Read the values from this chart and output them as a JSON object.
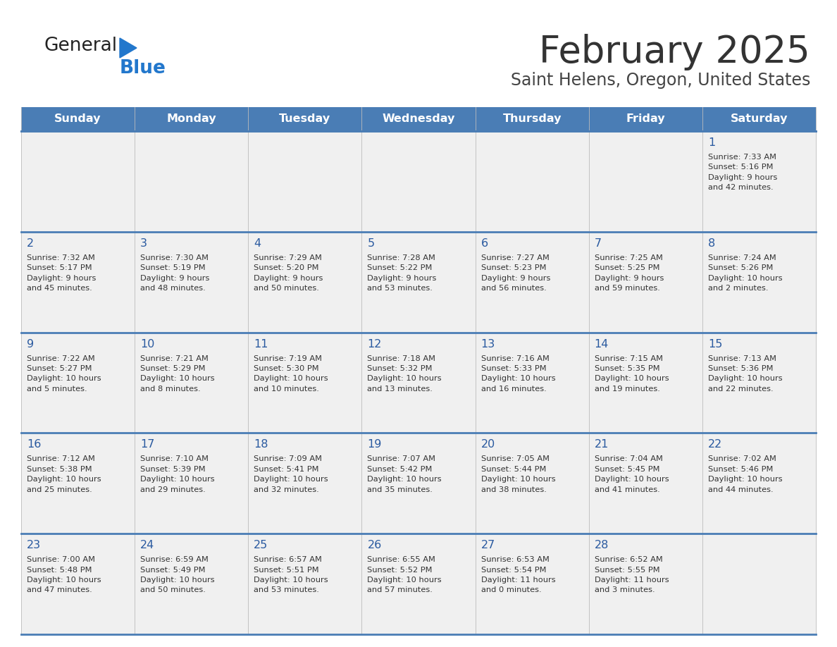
{
  "title": "February 2025",
  "subtitle": "Saint Helens, Oregon, United States",
  "header_color": "#4a7db5",
  "header_text_color": "#ffffff",
  "title_color": "#333333",
  "subtitle_color": "#444444",
  "cell_text_color": "#333333",
  "day_number_color": "#2a5aa0",
  "separator_color": "#4a7db5",
  "bg_color": "#f0f0f0",
  "white_color": "#ffffff",
  "days_of_week": [
    "Sunday",
    "Monday",
    "Tuesday",
    "Wednesday",
    "Thursday",
    "Friday",
    "Saturday"
  ],
  "calendar": [
    [
      {
        "day": "",
        "info": ""
      },
      {
        "day": "",
        "info": ""
      },
      {
        "day": "",
        "info": ""
      },
      {
        "day": "",
        "info": ""
      },
      {
        "day": "",
        "info": ""
      },
      {
        "day": "",
        "info": ""
      },
      {
        "day": "1",
        "info": "Sunrise: 7:33 AM\nSunset: 5:16 PM\nDaylight: 9 hours\nand 42 minutes."
      }
    ],
    [
      {
        "day": "2",
        "info": "Sunrise: 7:32 AM\nSunset: 5:17 PM\nDaylight: 9 hours\nand 45 minutes."
      },
      {
        "day": "3",
        "info": "Sunrise: 7:30 AM\nSunset: 5:19 PM\nDaylight: 9 hours\nand 48 minutes."
      },
      {
        "day": "4",
        "info": "Sunrise: 7:29 AM\nSunset: 5:20 PM\nDaylight: 9 hours\nand 50 minutes."
      },
      {
        "day": "5",
        "info": "Sunrise: 7:28 AM\nSunset: 5:22 PM\nDaylight: 9 hours\nand 53 minutes."
      },
      {
        "day": "6",
        "info": "Sunrise: 7:27 AM\nSunset: 5:23 PM\nDaylight: 9 hours\nand 56 minutes."
      },
      {
        "day": "7",
        "info": "Sunrise: 7:25 AM\nSunset: 5:25 PM\nDaylight: 9 hours\nand 59 minutes."
      },
      {
        "day": "8",
        "info": "Sunrise: 7:24 AM\nSunset: 5:26 PM\nDaylight: 10 hours\nand 2 minutes."
      }
    ],
    [
      {
        "day": "9",
        "info": "Sunrise: 7:22 AM\nSunset: 5:27 PM\nDaylight: 10 hours\nand 5 minutes."
      },
      {
        "day": "10",
        "info": "Sunrise: 7:21 AM\nSunset: 5:29 PM\nDaylight: 10 hours\nand 8 minutes."
      },
      {
        "day": "11",
        "info": "Sunrise: 7:19 AM\nSunset: 5:30 PM\nDaylight: 10 hours\nand 10 minutes."
      },
      {
        "day": "12",
        "info": "Sunrise: 7:18 AM\nSunset: 5:32 PM\nDaylight: 10 hours\nand 13 minutes."
      },
      {
        "day": "13",
        "info": "Sunrise: 7:16 AM\nSunset: 5:33 PM\nDaylight: 10 hours\nand 16 minutes."
      },
      {
        "day": "14",
        "info": "Sunrise: 7:15 AM\nSunset: 5:35 PM\nDaylight: 10 hours\nand 19 minutes."
      },
      {
        "day": "15",
        "info": "Sunrise: 7:13 AM\nSunset: 5:36 PM\nDaylight: 10 hours\nand 22 minutes."
      }
    ],
    [
      {
        "day": "16",
        "info": "Sunrise: 7:12 AM\nSunset: 5:38 PM\nDaylight: 10 hours\nand 25 minutes."
      },
      {
        "day": "17",
        "info": "Sunrise: 7:10 AM\nSunset: 5:39 PM\nDaylight: 10 hours\nand 29 minutes."
      },
      {
        "day": "18",
        "info": "Sunrise: 7:09 AM\nSunset: 5:41 PM\nDaylight: 10 hours\nand 32 minutes."
      },
      {
        "day": "19",
        "info": "Sunrise: 7:07 AM\nSunset: 5:42 PM\nDaylight: 10 hours\nand 35 minutes."
      },
      {
        "day": "20",
        "info": "Sunrise: 7:05 AM\nSunset: 5:44 PM\nDaylight: 10 hours\nand 38 minutes."
      },
      {
        "day": "21",
        "info": "Sunrise: 7:04 AM\nSunset: 5:45 PM\nDaylight: 10 hours\nand 41 minutes."
      },
      {
        "day": "22",
        "info": "Sunrise: 7:02 AM\nSunset: 5:46 PM\nDaylight: 10 hours\nand 44 minutes."
      }
    ],
    [
      {
        "day": "23",
        "info": "Sunrise: 7:00 AM\nSunset: 5:48 PM\nDaylight: 10 hours\nand 47 minutes."
      },
      {
        "day": "24",
        "info": "Sunrise: 6:59 AM\nSunset: 5:49 PM\nDaylight: 10 hours\nand 50 minutes."
      },
      {
        "day": "25",
        "info": "Sunrise: 6:57 AM\nSunset: 5:51 PM\nDaylight: 10 hours\nand 53 minutes."
      },
      {
        "day": "26",
        "info": "Sunrise: 6:55 AM\nSunset: 5:52 PM\nDaylight: 10 hours\nand 57 minutes."
      },
      {
        "day": "27",
        "info": "Sunrise: 6:53 AM\nSunset: 5:54 PM\nDaylight: 11 hours\nand 0 minutes."
      },
      {
        "day": "28",
        "info": "Sunrise: 6:52 AM\nSunset: 5:55 PM\nDaylight: 11 hours\nand 3 minutes."
      },
      {
        "day": "",
        "info": ""
      }
    ]
  ]
}
